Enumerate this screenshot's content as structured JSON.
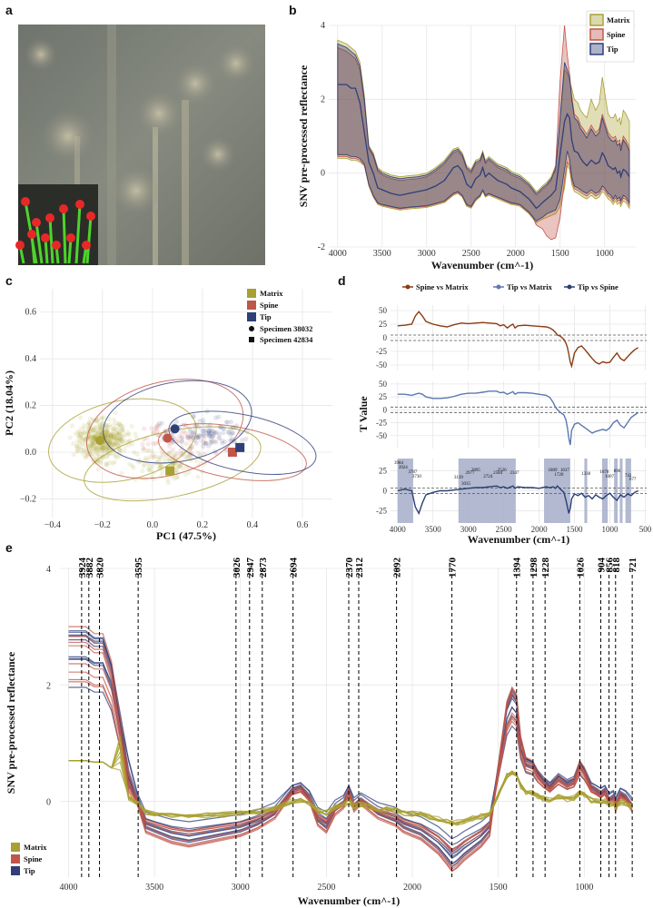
{
  "panel_labels": [
    "a",
    "b",
    "c",
    "d",
    "e"
  ],
  "colors": {
    "matrix": "#a8a032",
    "spine": "#c0564a",
    "tip": "#2e3f7a",
    "spine_vs_matrix": "#8b3d12",
    "tip_vs_matrix": "#5d78b0",
    "tip_vs_spine": "#2c3f74",
    "highlight": "#aab1cc",
    "photo_bg": "#7b7f77",
    "inset_bg": "#2a2a2a",
    "stem": "#4dd42a",
    "head": "#e82828"
  },
  "chart_data": [
    {
      "id": "b",
      "type": "area",
      "title": "",
      "xlabel": "Wavenumber (cm^-1)",
      "ylabel": "SNV pre-processed reflectance",
      "xlim": [
        4100,
        650
      ],
      "ylim": [
        -2,
        4
      ],
      "xticks": [
        4000,
        3500,
        3000,
        2500,
        2000,
        1500,
        1000
      ],
      "yticks": [
        -2,
        0,
        2,
        4
      ],
      "legend": [
        "Matrix",
        "Spine",
        "Tip"
      ],
      "x": [
        4000,
        3900,
        3850,
        3800,
        3750,
        3700,
        3650,
        3600,
        3550,
        3500,
        3400,
        3300,
        3200,
        3100,
        3000,
        2900,
        2800,
        2700,
        2650,
        2600,
        2550,
        2500,
        2450,
        2400,
        2370,
        2340,
        2300,
        2250,
        2200,
        2150,
        2100,
        2050,
        2000,
        1950,
        1900,
        1850,
        1800,
        1770,
        1740,
        1700,
        1650,
        1600,
        1550,
        1500,
        1450,
        1420,
        1394,
        1370,
        1340,
        1300,
        1270,
        1240,
        1200,
        1150,
        1100,
        1060,
        1026,
        1000,
        960,
        930,
        904,
        880,
        856,
        830,
        818,
        790,
        760,
        721
      ],
      "series": [
        {
          "name": "Tip",
          "values": [
            2.4,
            2.4,
            2.3,
            2.3,
            1.9,
            1.1,
            0.3,
            0,
            -0.4,
            -0.45,
            -0.55,
            -0.6,
            -0.55,
            -0.5,
            -0.45,
            -0.35,
            -0.2,
            0.15,
            0.2,
            0.05,
            -0.3,
            -0.4,
            -0.15,
            -0.05,
            0.15,
            -0.1,
            0,
            -0.1,
            -0.2,
            -0.25,
            -0.3,
            -0.4,
            -0.45,
            -0.5,
            -0.6,
            -0.7,
            -0.85,
            -0.95,
            -0.9,
            -0.8,
            -0.7,
            -0.6,
            -0.45,
            0.5,
            1.4,
            1.6,
            1.5,
            0.9,
            0.6,
            0.55,
            0.4,
            0.3,
            0.2,
            0.35,
            0.25,
            0.3,
            0.55,
            0.45,
            0.2,
            0.15,
            0.1,
            0.15,
            0.0,
            0.05,
            -0.1,
            0.1,
            0.05,
            -0.1
          ]
        },
        {
          "name": "Tip_lower",
          "values": [
            0.5,
            0.5,
            0.45,
            0.45,
            0.4,
            0.25,
            -0.3,
            -0.6,
            -0.8,
            -0.85,
            -0.9,
            -0.95,
            -0.92,
            -0.9,
            -0.88,
            -0.82,
            -0.75,
            -0.55,
            -0.5,
            -0.6,
            -0.85,
            -0.9,
            -0.7,
            -0.6,
            -0.45,
            -0.6,
            -0.55,
            -0.6,
            -0.65,
            -0.7,
            -0.75,
            -0.8,
            -0.82,
            -0.85,
            -0.95,
            -1.05,
            -1.2,
            -1.3,
            -1.25,
            -1.2,
            -1.1,
            -1.05,
            -1.0,
            -0.7,
            0.1,
            0.6,
            0.4,
            -0.1,
            -0.35,
            -0.4,
            -0.45,
            -0.5,
            -0.55,
            -0.45,
            -0.55,
            -0.5,
            -0.35,
            -0.4,
            -0.55,
            -0.6,
            -0.7,
            -0.6,
            -0.7,
            -0.65,
            -0.75,
            -0.6,
            -0.65,
            -0.8
          ]
        },
        {
          "name": "Tip_upper",
          "values": [
            3.5,
            3.4,
            3.3,
            3.2,
            2.9,
            2.0,
            0.7,
            0.5,
            0.1,
            0.0,
            -0.1,
            -0.15,
            -0.12,
            -0.1,
            -0.05,
            0.1,
            0.3,
            0.6,
            0.65,
            0.5,
            0.15,
            0.05,
            0.3,
            0.35,
            0.55,
            0.3,
            0.4,
            0.3,
            0.2,
            0.15,
            0.1,
            0.0,
            -0.05,
            -0.1,
            -0.2,
            -0.3,
            -0.45,
            -0.55,
            -0.5,
            -0.4,
            -0.3,
            -0.15,
            0.1,
            1.5,
            3.0,
            2.8,
            2.6,
            2.0,
            1.5,
            1.4,
            1.2,
            1.1,
            0.95,
            1.2,
            1.0,
            1.1,
            1.5,
            1.3,
            1.0,
            0.9,
            0.85,
            0.9,
            0.75,
            0.8,
            0.6,
            0.9,
            0.8,
            0.6
          ]
        },
        {
          "name": "Matrix_lower",
          "values": [
            0.4,
            0.4,
            0.35,
            0.35,
            0.3,
            0.2,
            -0.35,
            -0.65,
            -0.85,
            -0.9,
            -0.95,
            -1.0,
            -0.97,
            -0.95,
            -0.93,
            -0.87,
            -0.8,
            -0.6,
            -0.55,
            -0.65,
            -0.9,
            -0.95,
            -0.75,
            -0.65,
            -0.5,
            -0.65,
            -0.6,
            -0.65,
            -0.7,
            -0.75,
            -0.8,
            -0.85,
            -0.87,
            -0.9,
            -1.0,
            -1.1,
            -1.25,
            -1.35,
            -1.3,
            -1.25,
            -1.2,
            -1.15,
            -1.1,
            -0.9,
            -0.4,
            0.2,
            0.1,
            -0.3,
            -0.5,
            -0.55,
            -0.6,
            -0.65,
            -0.7,
            -0.6,
            -0.7,
            -0.65,
            -0.5,
            -0.55,
            -0.7,
            -0.75,
            -0.85,
            -0.75,
            -0.85,
            -0.8,
            -0.9,
            -0.75,
            -0.8,
            -0.95
          ]
        },
        {
          "name": "Matrix_upper",
          "values": [
            3.6,
            3.5,
            3.4,
            3.3,
            3.0,
            2.1,
            0.75,
            0.55,
            0.15,
            0.05,
            -0.05,
            -0.1,
            -0.07,
            -0.05,
            0.0,
            0.15,
            0.35,
            0.65,
            0.7,
            0.55,
            0.2,
            0.1,
            0.35,
            0.4,
            0.6,
            0.35,
            0.45,
            0.35,
            0.25,
            0.2,
            0.15,
            0.05,
            0.0,
            -0.05,
            -0.15,
            -0.25,
            -0.4,
            -0.5,
            -0.45,
            -0.35,
            -0.25,
            -0.1,
            0.2,
            1.4,
            2.8,
            2.7,
            2.5,
            2.3,
            2.0,
            1.9,
            1.7,
            1.6,
            1.5,
            2.0,
            1.7,
            1.9,
            2.6,
            2.2,
            1.6,
            1.5,
            1.5,
            1.6,
            1.4,
            1.5,
            1.3,
            1.7,
            1.6,
            1.4
          ]
        },
        {
          "name": "Spine_upper",
          "values": [
            3.4,
            3.3,
            3.2,
            3.1,
            2.8,
            1.9,
            0.65,
            0.45,
            0.05,
            -0.05,
            -0.15,
            -0.2,
            -0.17,
            -0.15,
            -0.1,
            0.05,
            0.25,
            0.55,
            0.6,
            0.45,
            0.1,
            0.0,
            0.25,
            0.3,
            0.5,
            0.25,
            0.35,
            0.25,
            0.15,
            0.1,
            0.05,
            -0.05,
            -0.1,
            -0.15,
            -0.25,
            -0.35,
            -0.5,
            -0.6,
            -0.55,
            -0.45,
            -0.35,
            -0.2,
            0.2,
            2.5,
            4.0,
            3.2,
            2.7,
            2.1,
            1.6,
            1.5,
            1.3,
            1.2,
            1.05,
            1.3,
            1.1,
            1.2,
            1.6,
            1.4,
            1.1,
            1.0,
            0.95,
            1.0,
            0.85,
            0.9,
            0.7,
            1.0,
            0.9,
            0.7
          ]
        },
        {
          "name": "Spine_lower",
          "values": [
            0.45,
            0.45,
            0.4,
            0.4,
            0.35,
            0.2,
            -0.32,
            -0.62,
            -0.82,
            -0.87,
            -0.92,
            -0.97,
            -0.94,
            -0.92,
            -0.9,
            -0.84,
            -0.77,
            -0.57,
            -0.52,
            -0.62,
            -0.87,
            -0.92,
            -0.72,
            -0.62,
            -0.47,
            -0.62,
            -0.57,
            -0.62,
            -0.67,
            -0.72,
            -0.77,
            -0.82,
            -0.84,
            -0.87,
            -0.97,
            -1.07,
            -1.22,
            -1.4,
            -1.45,
            -1.5,
            -1.7,
            -1.8,
            -1.75,
            -1.2,
            -0.2,
            0.3,
            0.2,
            -0.2,
            -0.42,
            -0.47,
            -0.52,
            -0.57,
            -0.62,
            -0.52,
            -0.62,
            -0.57,
            -0.42,
            -0.47,
            -0.62,
            -0.67,
            -0.77,
            -0.67,
            -0.77,
            -0.72,
            -0.82,
            -0.67,
            -0.72,
            -0.87
          ]
        }
      ]
    },
    {
      "id": "c",
      "type": "scatter",
      "xlabel": "PC1 (47.5%)",
      "ylabel": "PC2 (18.04%)",
      "xlim": [
        -0.45,
        0.72
      ],
      "ylim": [
        -0.28,
        0.7
      ],
      "xticks": [
        -0.4,
        -0.2,
        0.0,
        0.2,
        0.4,
        0.6
      ],
      "xtick_labels": [
        "−0.4",
        "−0.2",
        "0.0",
        "0.2",
        "0.4",
        "0.6"
      ],
      "yticks": [
        -0.2,
        0.0,
        0.2,
        0.4,
        0.6
      ],
      "ytick_labels": [
        "−0.2",
        "0.0",
        "0.2",
        "0.4",
        "0.6"
      ],
      "legend": [
        "Matrix",
        "Spine",
        "Tip",
        "Specimen 38032",
        "Specimen 42834"
      ],
      "centroids": [
        {
          "group": "Matrix",
          "specimen": "38032",
          "shape": "circle",
          "x": -0.21,
          "y": 0.05
        },
        {
          "group": "Matrix",
          "specimen": "42834",
          "shape": "square",
          "x": 0.07,
          "y": -0.08
        },
        {
          "group": "Spine",
          "specimen": "38032",
          "shape": "circle",
          "x": 0.06,
          "y": 0.06
        },
        {
          "group": "Spine",
          "specimen": "42834",
          "shape": "square",
          "x": 0.32,
          "y": 0.0
        },
        {
          "group": "Tip",
          "specimen": "38032",
          "shape": "circle",
          "x": 0.09,
          "y": 0.1
        },
        {
          "group": "Tip",
          "specimen": "42834",
          "shape": "square",
          "x": 0.35,
          "y": 0.02
        }
      ],
      "ellipses": [
        {
          "group": "Matrix",
          "specimen": "38032",
          "cx": -0.12,
          "cy": 0.05,
          "rx": 0.3,
          "ry": 0.17,
          "angle": -12
        },
        {
          "group": "Matrix",
          "specimen": "42834",
          "cx": 0.08,
          "cy": -0.05,
          "rx": 0.36,
          "ry": 0.14,
          "angle": -12
        },
        {
          "group": "Spine",
          "specimen": "38032",
          "cx": 0.05,
          "cy": 0.1,
          "rx": 0.32,
          "ry": 0.2,
          "angle": -15
        },
        {
          "group": "Spine",
          "specimen": "42834",
          "cx": 0.32,
          "cy": 0.0,
          "rx": 0.3,
          "ry": 0.11,
          "angle": 10
        },
        {
          "group": "Tip",
          "specimen": "38032",
          "cx": 0.1,
          "cy": 0.13,
          "rx": 0.3,
          "ry": 0.17,
          "angle": -10
        },
        {
          "group": "Tip",
          "specimen": "42834",
          "cx": 0.36,
          "cy": 0.04,
          "rx": 0.3,
          "ry": 0.12,
          "angle": 12
        }
      ]
    },
    {
      "id": "d",
      "type": "line",
      "xlabel": "Wavenumber (cm^-1)",
      "ylabel": "T Value",
      "xlim": [
        4100,
        480
      ],
      "xticks": [
        4000,
        3500,
        3000,
        2500,
        2000,
        1500,
        1000,
        500
      ],
      "yticks": [
        -50,
        -25,
        0,
        25,
        50
      ],
      "legend": [
        "Spine vs Matrix",
        "Tip vs Matrix",
        "Tip vs Spine"
      ],
      "x": [
        4000,
        3900,
        3800,
        3750,
        3700,
        3650,
        3600,
        3500,
        3400,
        3300,
        3200,
        3100,
        3000,
        2900,
        2800,
        2700,
        2600,
        2550,
        2500,
        2450,
        2400,
        2370,
        2340,
        2300,
        2200,
        2100,
        2000,
        1900,
        1850,
        1800,
        1770,
        1740,
        1700,
        1650,
        1620,
        1600,
        1580,
        1560,
        1540,
        1500,
        1450,
        1400,
        1350,
        1300,
        1250,
        1200,
        1150,
        1100,
        1050,
        1000,
        950,
        900,
        850,
        800,
        750,
        700,
        650,
        600
      ],
      "series": [
        {
          "name": "Spine vs Matrix",
          "values": [
            22,
            23,
            25,
            40,
            48,
            40,
            30,
            25,
            22,
            20,
            24,
            27,
            26,
            27,
            28,
            27,
            26,
            22,
            24,
            18,
            23,
            25,
            18,
            22,
            23,
            22,
            21,
            20,
            18,
            14,
            10,
            5,
            3,
            -3,
            -10,
            -18,
            -30,
            -45,
            -52,
            -28,
            -18,
            -15,
            -22,
            -30,
            -38,
            -45,
            -48,
            -44,
            -46,
            -45,
            -36,
            -28,
            -38,
            -42,
            -35,
            -28,
            -22,
            -18
          ]
        },
        {
          "name": "Tip vs Matrix",
          "values": [
            30,
            30,
            28,
            30,
            32,
            30,
            25,
            22,
            22,
            23,
            26,
            30,
            32,
            32,
            34,
            36,
            36,
            33,
            34,
            30,
            33,
            35,
            30,
            33,
            33,
            32,
            30,
            28,
            24,
            14,
            5,
            0,
            -5,
            -10,
            -20,
            -35,
            -55,
            -68,
            -40,
            -28,
            -25,
            -30,
            -35,
            -40,
            -45,
            -42,
            -40,
            -38,
            -40,
            -35,
            -25,
            -20,
            -30,
            -35,
            -25,
            -15,
            -10,
            -5
          ]
        },
        {
          "name": "Tip vs Spine",
          "values": [
            0,
            2,
            0,
            -20,
            -28,
            -15,
            -5,
            -2,
            0,
            0,
            1,
            2,
            3,
            4,
            4,
            5,
            6,
            4,
            5,
            3,
            5,
            6,
            3,
            5,
            4,
            4,
            3,
            5,
            4,
            5,
            3,
            6,
            2,
            -2,
            -12,
            -20,
            -28,
            -22,
            -10,
            -4,
            -6,
            -3,
            -8,
            -6,
            -10,
            -5,
            -8,
            -10,
            -6,
            -3,
            -8,
            -12,
            -5,
            -8,
            -4,
            -6,
            -2,
            0
          ]
        }
      ],
      "highlight_ranges": [
        [
          4000,
          3780
        ],
        [
          3140,
          2330
        ],
        [
          1930,
          1560
        ],
        [
          1360,
          1320
        ],
        [
          1110,
          1030
        ],
        [
          940,
          890
        ],
        [
          860,
          820
        ],
        [
          780,
          700
        ]
      ],
      "peak_labels": [
        "3984",
        "3924",
        "3787",
        "3730",
        "3139",
        "3035",
        "2977",
        "2895",
        "2724",
        "2584",
        "2526",
        "2347",
        "1809",
        "1720",
        "1637",
        "1338",
        "1078",
        "1007",
        "896",
        "742",
        "677"
      ]
    },
    {
      "id": "e",
      "type": "line",
      "xlabel": "Wavenumber (cm^-1)",
      "ylabel": "SNV pre-processed reflectance",
      "xlim": [
        4050,
        690
      ],
      "ylim": [
        -1.3,
        4.0
      ],
      "xticks": [
        4000,
        3500,
        3000,
        2500,
        2000,
        1500,
        1000
      ],
      "yticks": [
        0,
        2,
        4
      ],
      "legend": [
        "Matrix",
        "Spine",
        "Tip"
      ],
      "peaks": [
        3924,
        3882,
        3820,
        3595,
        3026,
        2947,
        2873,
        2694,
        2370,
        2312,
        2092,
        1770,
        1394,
        1298,
        1228,
        1026,
        904,
        856,
        818,
        721
      ]
    }
  ]
}
